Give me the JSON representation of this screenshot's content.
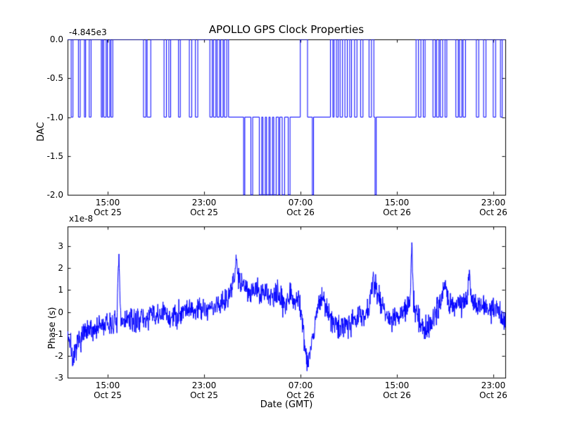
{
  "figure": {
    "background": "#ffffff",
    "axes_color": "#000000",
    "line_color": "#0000ff"
  },
  "chart_data": [
    {
      "type": "line",
      "subplot": "top",
      "title": "APOLLO GPS Clock Properties",
      "ylabel": "DAC",
      "offset_text": "-4.845e3",
      "x_unit": "hours since plot start (Oct 25 ~11:40 GMT)",
      "xlim": [
        0,
        36.3
      ],
      "ylim": [
        -2.0,
        0.0
      ],
      "yticks": [
        0.0,
        -0.5,
        -1.0,
        -1.5,
        -2.0
      ],
      "ytick_labels": [
        "0.0",
        "-0.5",
        "-1.0",
        "-1.5",
        "-2.0"
      ],
      "xticks": [
        3.3,
        11.3,
        19.3,
        27.3,
        35.3
      ],
      "xtick_labels": [
        [
          "15:00",
          "Oct 25"
        ],
        [
          "23:00",
          "Oct 25"
        ],
        [
          "07:00",
          "Oct 26"
        ],
        [
          "15:00",
          "Oct 26"
        ],
        [
          "23:00",
          "Oct 26"
        ]
      ],
      "grid": false,
      "legend": "none",
      "series": [
        {
          "name": "DAC",
          "color": "#0000ff",
          "style": "step",
          "segments": [
            [
              0.0,
              0.3,
              0
            ],
            [
              0.3,
              0.45,
              -1
            ],
            [
              0.45,
              0.9,
              0
            ],
            [
              0.9,
              1.05,
              -1
            ],
            [
              1.05,
              1.4,
              0
            ],
            [
              1.4,
              1.5,
              -1
            ],
            [
              1.5,
              1.8,
              0
            ],
            [
              1.8,
              1.95,
              -1
            ],
            [
              1.95,
              2.8,
              0
            ],
            [
              2.8,
              2.9,
              -1
            ],
            [
              2.9,
              3.0,
              0
            ],
            [
              3.0,
              3.2,
              -1
            ],
            [
              3.2,
              3.3,
              0
            ],
            [
              3.3,
              3.5,
              -1
            ],
            [
              3.5,
              3.6,
              0
            ],
            [
              3.6,
              3.75,
              -1
            ],
            [
              3.75,
              6.3,
              0
            ],
            [
              6.3,
              6.5,
              -1
            ],
            [
              6.5,
              6.6,
              0
            ],
            [
              6.6,
              6.9,
              -1
            ],
            [
              6.9,
              8.0,
              0
            ],
            [
              8.0,
              8.2,
              -1
            ],
            [
              8.2,
              8.4,
              0
            ],
            [
              8.4,
              8.55,
              -1
            ],
            [
              8.55,
              9.2,
              0
            ],
            [
              9.2,
              9.35,
              -1
            ],
            [
              9.35,
              10.1,
              0
            ],
            [
              10.1,
              10.3,
              -1
            ],
            [
              10.3,
              10.6,
              0
            ],
            [
              10.6,
              10.8,
              -1
            ],
            [
              10.8,
              11.8,
              0
            ],
            [
              11.8,
              12.0,
              -1
            ],
            [
              12.0,
              12.1,
              0
            ],
            [
              12.1,
              12.3,
              -1
            ],
            [
              12.3,
              12.4,
              0
            ],
            [
              12.4,
              12.6,
              -1
            ],
            [
              12.6,
              12.7,
              0
            ],
            [
              12.7,
              12.9,
              -1
            ],
            [
              12.9,
              13.0,
              0
            ],
            [
              13.0,
              13.2,
              -1
            ],
            [
              13.2,
              13.35,
              0
            ],
            [
              13.35,
              14.6,
              -1
            ],
            [
              14.6,
              14.7,
              -2
            ],
            [
              14.7,
              15.2,
              -1
            ],
            [
              15.2,
              15.35,
              -2
            ],
            [
              15.35,
              15.9,
              -1
            ],
            [
              15.9,
              16.1,
              -2
            ],
            [
              16.1,
              16.2,
              -1
            ],
            [
              16.2,
              16.4,
              -2
            ],
            [
              16.4,
              16.5,
              -1
            ],
            [
              16.5,
              16.7,
              -2
            ],
            [
              16.7,
              16.8,
              -1
            ],
            [
              16.8,
              17.0,
              -2
            ],
            [
              17.0,
              17.1,
              -1
            ],
            [
              17.1,
              17.3,
              -2
            ],
            [
              17.3,
              17.5,
              -1
            ],
            [
              17.5,
              17.6,
              -2
            ],
            [
              17.6,
              17.8,
              -1
            ],
            [
              17.8,
              18.0,
              -2
            ],
            [
              18.0,
              18.3,
              -1
            ],
            [
              18.3,
              18.45,
              -2
            ],
            [
              18.45,
              19.3,
              -1
            ],
            [
              19.3,
              19.9,
              0
            ],
            [
              19.9,
              20.3,
              -1
            ],
            [
              20.3,
              20.4,
              -2
            ],
            [
              20.4,
              21.8,
              -1
            ],
            [
              21.8,
              22.0,
              0
            ],
            [
              22.0,
              22.1,
              -1
            ],
            [
              22.1,
              22.3,
              0
            ],
            [
              22.3,
              22.45,
              -1
            ],
            [
              22.45,
              22.6,
              0
            ],
            [
              22.6,
              22.8,
              -1
            ],
            [
              22.8,
              23.0,
              0
            ],
            [
              23.0,
              23.2,
              -1
            ],
            [
              23.2,
              23.4,
              0
            ],
            [
              23.4,
              23.55,
              -1
            ],
            [
              23.55,
              23.8,
              0
            ],
            [
              23.8,
              24.0,
              -1
            ],
            [
              24.0,
              24.3,
              0
            ],
            [
              24.3,
              24.5,
              -1
            ],
            [
              24.5,
              25.0,
              0
            ],
            [
              25.0,
              25.2,
              -1
            ],
            [
              25.2,
              25.4,
              0
            ],
            [
              25.4,
              25.5,
              -1
            ],
            [
              25.5,
              25.6,
              -2
            ],
            [
              25.6,
              28.9,
              -1
            ],
            [
              28.9,
              29.1,
              0
            ],
            [
              29.1,
              29.3,
              -1
            ],
            [
              29.3,
              29.5,
              0
            ],
            [
              29.5,
              29.65,
              -1
            ],
            [
              29.65,
              30.3,
              0
            ],
            [
              30.3,
              30.5,
              -1
            ],
            [
              30.5,
              30.6,
              0
            ],
            [
              30.6,
              30.8,
              -1
            ],
            [
              30.8,
              30.9,
              0
            ],
            [
              30.9,
              31.1,
              -1
            ],
            [
              31.1,
              31.3,
              0
            ],
            [
              31.3,
              31.45,
              -1
            ],
            [
              31.45,
              32.2,
              0
            ],
            [
              32.2,
              32.4,
              -1
            ],
            [
              32.4,
              32.5,
              0
            ],
            [
              32.5,
              32.7,
              -1
            ],
            [
              32.7,
              32.8,
              0
            ],
            [
              32.8,
              33.0,
              -1
            ],
            [
              33.0,
              33.9,
              0
            ],
            [
              33.9,
              34.1,
              -1
            ],
            [
              34.1,
              34.5,
              0
            ],
            [
              34.5,
              34.7,
              -1
            ],
            [
              34.7,
              35.3,
              0
            ],
            [
              35.3,
              35.5,
              -1
            ],
            [
              35.5,
              35.9,
              0
            ],
            [
              35.9,
              36.05,
              -1
            ],
            [
              36.05,
              36.3,
              0
            ]
          ]
        }
      ]
    },
    {
      "type": "line",
      "subplot": "bottom",
      "ylabel": "Phase (s)",
      "scale_text": "x1e-8",
      "xlabel": "Date (GMT)",
      "x_unit": "hours since plot start (Oct 25 ~11:40 GMT)",
      "xlim": [
        0,
        36.3
      ],
      "ylim": [
        -3.0,
        3.9
      ],
      "yticks": [
        3,
        2,
        1,
        0,
        -1,
        -2,
        -3
      ],
      "ytick_labels": [
        "3",
        "2",
        "1",
        "0",
        "-1",
        "-2",
        "-3"
      ],
      "xticks": [
        3.3,
        11.3,
        19.3,
        27.3,
        35.3
      ],
      "xtick_labels": [
        [
          "15:00",
          "Oct 25"
        ],
        [
          "23:00",
          "Oct 25"
        ],
        [
          "07:00",
          "Oct 26"
        ],
        [
          "15:00",
          "Oct 26"
        ],
        [
          "23:00",
          "Oct 26"
        ]
      ],
      "grid": false,
      "legend": "none",
      "series": [
        {
          "name": "Phase",
          "color": "#0000ff",
          "style": "noisy-line",
          "keypoints": [
            [
              0.0,
              -0.9
            ],
            [
              0.3,
              -1.6
            ],
            [
              0.5,
              -2.3
            ],
            [
              0.8,
              -1.5
            ],
            [
              1.2,
              -1.1
            ],
            [
              1.8,
              -0.9
            ],
            [
              2.5,
              -0.7
            ],
            [
              3.2,
              -0.6
            ],
            [
              4.0,
              -0.5
            ],
            [
              4.1,
              -0.4
            ],
            [
              4.25,
              2.5
            ],
            [
              4.4,
              -0.4
            ],
            [
              5.0,
              -0.35
            ],
            [
              5.5,
              -0.5
            ],
            [
              6.0,
              -0.2
            ],
            [
              6.5,
              -0.4
            ],
            [
              7.0,
              -0.1
            ],
            [
              7.5,
              -0.3
            ],
            [
              8.0,
              0.0
            ],
            [
              8.5,
              -0.3
            ],
            [
              9.0,
              -0.2
            ],
            [
              9.5,
              0.1
            ],
            [
              10.0,
              0.2
            ],
            [
              10.5,
              0.0
            ],
            [
              11.0,
              0.3
            ],
            [
              11.5,
              0.1
            ],
            [
              12.0,
              0.2
            ],
            [
              12.5,
              0.3
            ],
            [
              13.0,
              0.6
            ],
            [
              13.6,
              0.9
            ],
            [
              14.0,
              2.3
            ],
            [
              14.3,
              1.4
            ],
            [
              14.8,
              1.2
            ],
            [
              15.2,
              0.9
            ],
            [
              15.6,
              1.1
            ],
            [
              16.0,
              0.7
            ],
            [
              16.5,
              0.9
            ],
            [
              17.0,
              0.6
            ],
            [
              17.5,
              0.8
            ],
            [
              18.0,
              0.4
            ],
            [
              18.5,
              0.9
            ],
            [
              18.8,
              0.5
            ],
            [
              19.2,
              0.6
            ],
            [
              19.5,
              -0.5
            ],
            [
              19.8,
              -2.2
            ],
            [
              20.1,
              -1.9
            ],
            [
              20.4,
              -0.9
            ],
            [
              20.8,
              0.3
            ],
            [
              21.1,
              0.8
            ],
            [
              21.4,
              0.2
            ],
            [
              21.8,
              -0.3
            ],
            [
              22.2,
              -0.6
            ],
            [
              22.6,
              -0.8
            ],
            [
              23.0,
              -0.5
            ],
            [
              23.5,
              -0.4
            ],
            [
              24.0,
              -0.3
            ],
            [
              24.5,
              -0.2
            ],
            [
              25.0,
              0.2
            ],
            [
              25.3,
              1.4
            ],
            [
              25.6,
              1.1
            ],
            [
              26.0,
              0.4
            ],
            [
              26.5,
              -0.1
            ],
            [
              27.0,
              -0.4
            ],
            [
              27.5,
              -0.2
            ],
            [
              28.0,
              0.1
            ],
            [
              28.4,
              0.3
            ],
            [
              28.55,
              3.2
            ],
            [
              28.7,
              0.4
            ],
            [
              29.2,
              -0.4
            ],
            [
              29.6,
              -0.9
            ],
            [
              30.0,
              -0.6
            ],
            [
              30.4,
              -0.1
            ],
            [
              30.8,
              0.3
            ],
            [
              31.3,
              1.2
            ],
            [
              31.6,
              0.4
            ],
            [
              32.0,
              0.5
            ],
            [
              32.5,
              0.3
            ],
            [
              33.0,
              0.4
            ],
            [
              33.3,
              1.6
            ],
            [
              33.6,
              0.5
            ],
            [
              34.0,
              0.2
            ],
            [
              34.5,
              0.4
            ],
            [
              35.0,
              0.0
            ],
            [
              35.5,
              0.2
            ],
            [
              36.0,
              -0.2
            ],
            [
              36.3,
              -0.4
            ]
          ],
          "noise": {
            "seed": 7,
            "amplitude": 0.55,
            "points": 1500
          }
        }
      ]
    }
  ]
}
